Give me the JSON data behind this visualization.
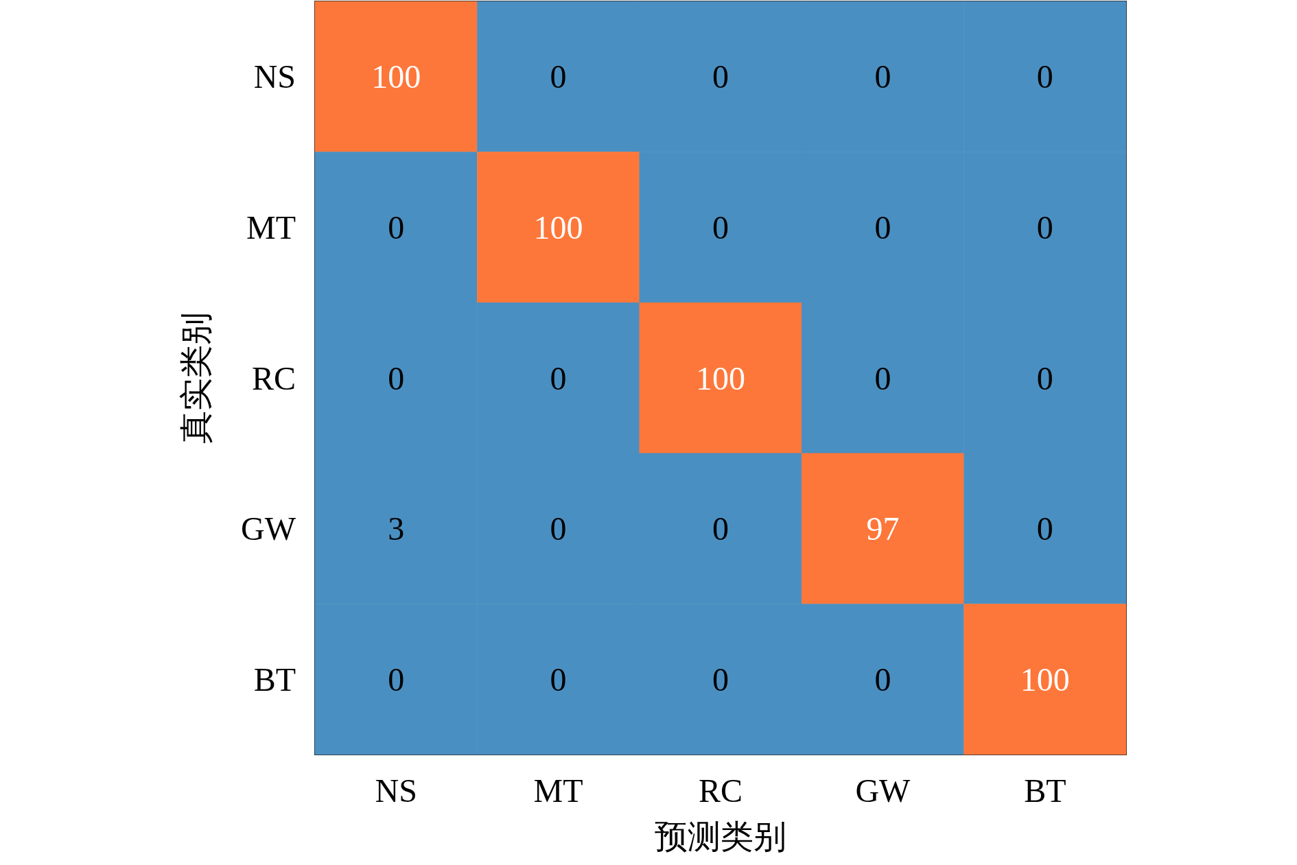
{
  "chart_data": {
    "type": "heatmap",
    "xlabel": "预测类别",
    "ylabel": "真实类别",
    "categories": [
      "NS",
      "MT",
      "RC",
      "GW",
      "BT"
    ],
    "y_categories": [
      "NS",
      "MT",
      "RC",
      "GW",
      "BT"
    ],
    "cells": [
      [
        100,
        0,
        0,
        0,
        0
      ],
      [
        0,
        100,
        0,
        0,
        0
      ],
      [
        0,
        0,
        100,
        0,
        0
      ],
      [
        3,
        0,
        0,
        97,
        0
      ],
      [
        0,
        0,
        0,
        0,
        100
      ]
    ],
    "colors": [
      [
        "#fe773a",
        "#4a8fc1",
        "#4a8fc1",
        "#4a8fc1",
        "#4a8fc1"
      ],
      [
        "#4a8fc1",
        "#fe773a",
        "#4a8fc1",
        "#4a8fc1",
        "#4a8fc1"
      ],
      [
        "#4a8fc1",
        "#4a8fc1",
        "#fe773a",
        "#4a8fc1",
        "#4a8fc1"
      ],
      [
        "#4a8fc1",
        "#4a8fc1",
        "#4a8fc1",
        "#fe773a",
        "#4a8fc1"
      ],
      [
        "#4a8fc1",
        "#4a8fc1",
        "#4a8fc1",
        "#4a8fc1",
        "#fe773a"
      ]
    ],
    "data_labels": true
  }
}
